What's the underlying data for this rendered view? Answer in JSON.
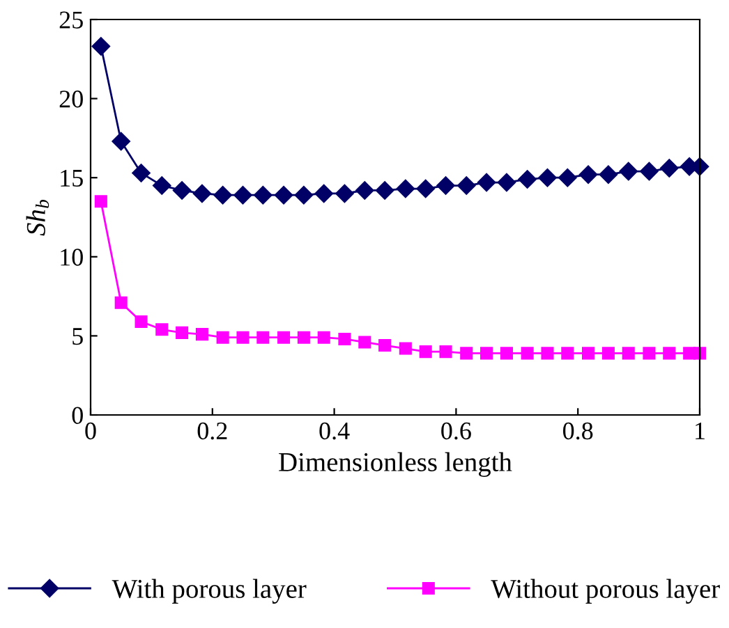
{
  "chart_data": {
    "type": "line",
    "xlabel": "Dimensionless length",
    "ylabel": "Sh$_{b}$",
    "x": [
      0.017,
      0.05,
      0.083,
      0.117,
      0.15,
      0.183,
      0.217,
      0.25,
      0.283,
      0.317,
      0.35,
      0.383,
      0.417,
      0.45,
      0.483,
      0.517,
      0.55,
      0.583,
      0.617,
      0.65,
      0.683,
      0.717,
      0.75,
      0.783,
      0.817,
      0.85,
      0.883,
      0.917,
      0.95,
      0.983,
      1.0
    ],
    "series": [
      {
        "name": "With porous layer",
        "color": "#000066",
        "marker": "diamond",
        "values": [
          23.3,
          17.3,
          15.3,
          14.5,
          14.2,
          14.0,
          13.9,
          13.9,
          13.9,
          13.9,
          13.9,
          14.0,
          14.0,
          14.2,
          14.2,
          14.3,
          14.3,
          14.5,
          14.5,
          14.7,
          14.7,
          14.9,
          15.0,
          15.0,
          15.2,
          15.2,
          15.4,
          15.4,
          15.6,
          15.7,
          15.7
        ]
      },
      {
        "name": "Without porous layer",
        "color": "#ff00ff",
        "marker": "square",
        "values": [
          13.5,
          7.1,
          5.9,
          5.4,
          5.2,
          5.1,
          4.9,
          4.9,
          4.9,
          4.9,
          4.9,
          4.9,
          4.8,
          4.6,
          4.4,
          4.2,
          4.0,
          4.0,
          3.9,
          3.9,
          3.9,
          3.9,
          3.9,
          3.9,
          3.9,
          3.9,
          3.9,
          3.9,
          3.9,
          3.9,
          3.9
        ]
      }
    ],
    "xlim": [
      0,
      1
    ],
    "ylim": [
      0,
      25
    ],
    "xticks": [
      0,
      0.2,
      0.4,
      0.6,
      0.8,
      1
    ],
    "yticks": [
      0,
      5,
      10,
      15,
      20,
      25
    ],
    "grid": false,
    "legend": "bottom",
    "line_style": "solid"
  }
}
